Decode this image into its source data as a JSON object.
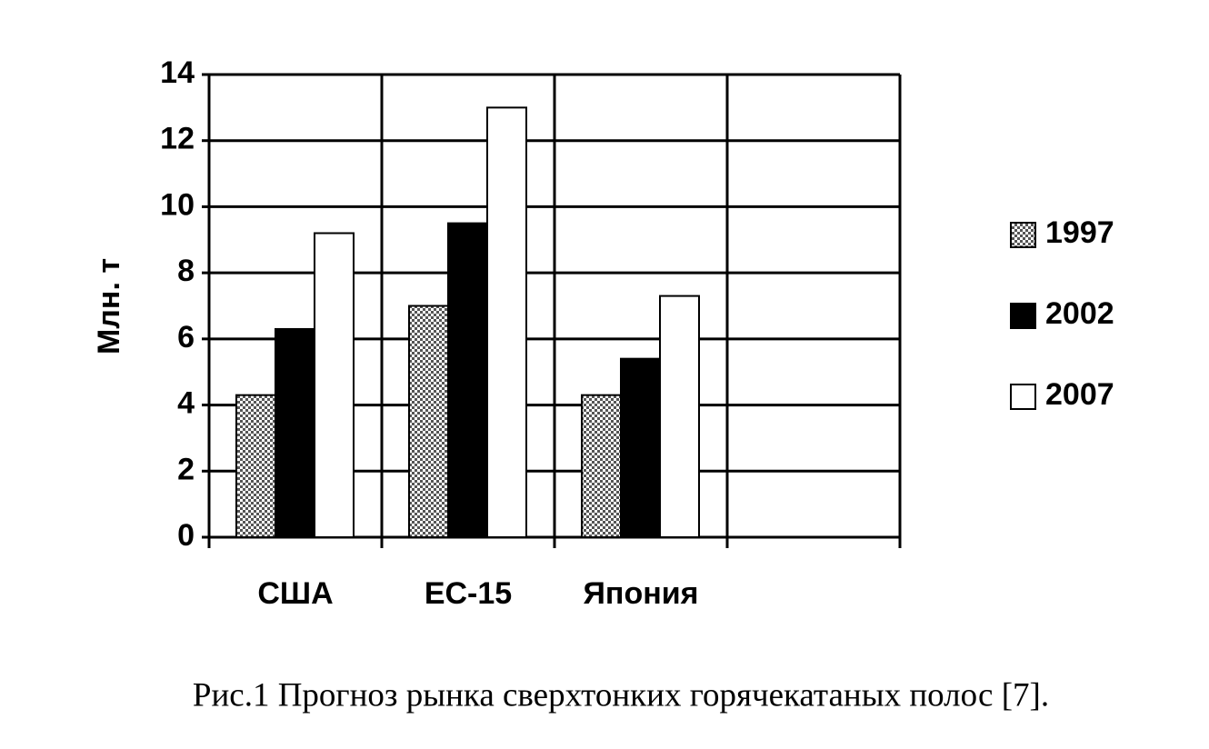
{
  "chart_data": {
    "type": "bar",
    "caption": "Рис.1 Прогноз рынка сверхтонких горячекатаных полос [7].",
    "ylabel": "Млн. т",
    "categories": [
      "США",
      "ЕС-15",
      "Япония",
      null
    ],
    "series": [
      {
        "name": "1997",
        "color": "#000000",
        "pattern": "checkered",
        "values": [
          4.3,
          7.0,
          4.3,
          null
        ]
      },
      {
        "name": "2002",
        "color": "#000000",
        "values": [
          6.3,
          9.5,
          5.4,
          null
        ]
      },
      {
        "name": "2007",
        "color": "#ffffff",
        "values": [
          9.2,
          13.0,
          7.3,
          null
        ]
      }
    ],
    "ylim": [
      0,
      14
    ],
    "yticks": [
      0,
      2,
      4,
      6,
      8,
      10,
      12,
      14
    ],
    "grid": true,
    "legend": "right"
  }
}
